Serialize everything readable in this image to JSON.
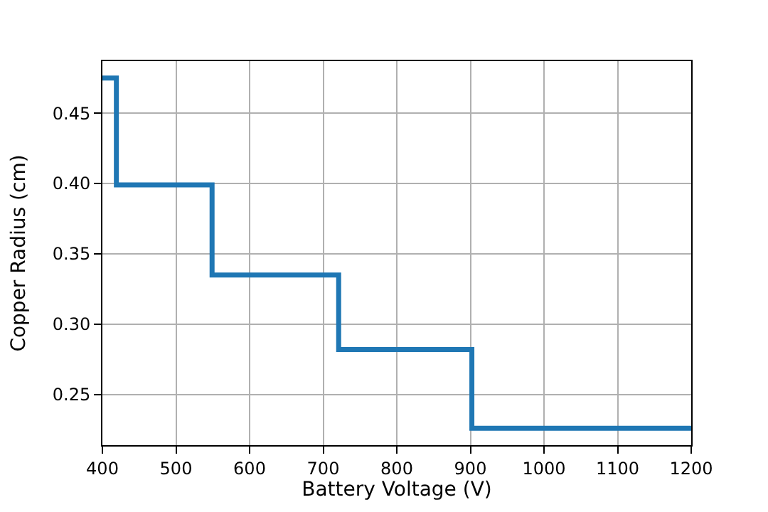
{
  "chart_data": {
    "type": "step",
    "xlabel": "Battery Voltage (V)",
    "ylabel": "Copper Radius (cm)",
    "x": [
      400,
      419,
      549,
      721,
      902,
      1200
    ],
    "series": [
      {
        "color": "#1f77b4",
        "values": [
          0.475,
          0.399,
          0.335,
          0.282,
          0.226,
          0.226
        ]
      }
    ],
    "xlim": [
      400,
      1200
    ],
    "xticks": [
      400,
      500,
      600,
      700,
      800,
      900,
      1000,
      1100,
      1200
    ],
    "ylim": [
      0.214,
      0.487
    ],
    "yticks": [
      0.25,
      {
        "value": 0.3,
        "label": "0.30"
      },
      0.35,
      {
        "value": 0.4,
        "label": "0.40"
      },
      0.45
    ],
    "grid": true,
    "marker": "none",
    "line_style": "solid",
    "legend": false
  }
}
